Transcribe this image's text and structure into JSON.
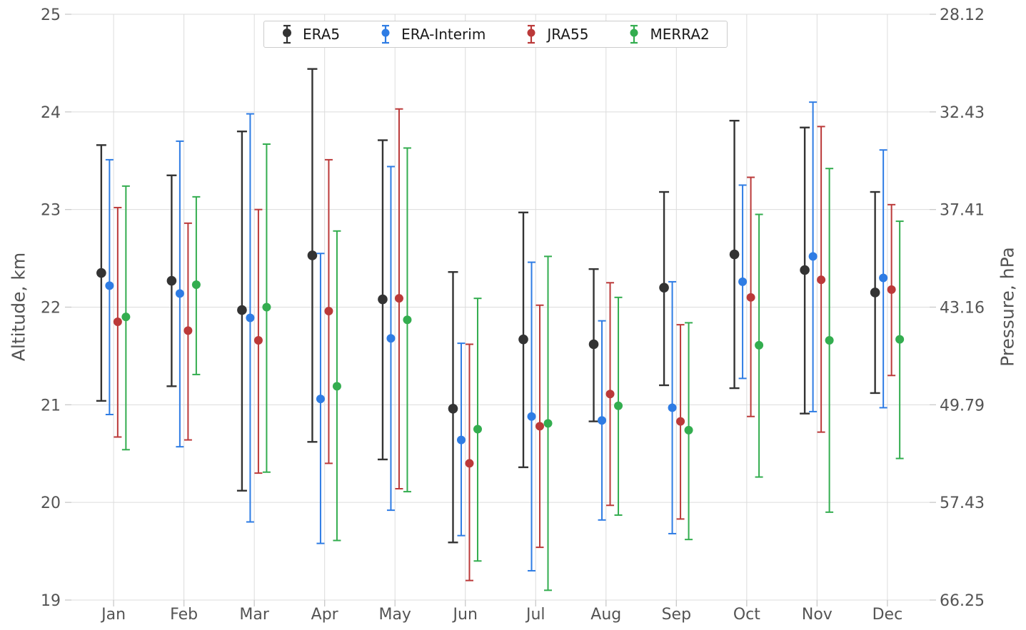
{
  "accent_colors": {
    "grid": "#dcdcdc",
    "tick_mark": "#c9c9c9",
    "tick_text": "#545454",
    "legend_border": "#cccccc",
    "legend_text": "#1a1a1a"
  },
  "chart_data": {
    "type": "scatter",
    "subtype": "errorbar",
    "title": "",
    "categories": [
      "Jan",
      "Feb",
      "Mar",
      "Apr",
      "May",
      "Jun",
      "Jul",
      "Aug",
      "Sep",
      "Oct",
      "Nov",
      "Dec"
    ],
    "y_left": {
      "label": "Altitude, km",
      "ticks": [
        25,
        24,
        23,
        22,
        21,
        20,
        19
      ],
      "range": [
        19,
        25
      ]
    },
    "y_right": {
      "label": "Pressure, hPa",
      "tick_labels": [
        "28.12",
        "32.43",
        "37.41",
        "43.16",
        "49.79",
        "57.43",
        "66.25"
      ]
    },
    "grid": true,
    "legend_position": "top-center",
    "series": [
      {
        "name": "ERA5",
        "color": "#333333",
        "values": [
          22.35,
          22.27,
          21.97,
          22.53,
          22.08,
          20.96,
          21.67,
          21.62,
          22.2,
          22.54,
          22.38,
          22.15
        ],
        "lo": [
          21.04,
          21.19,
          20.12,
          20.62,
          20.44,
          19.59,
          20.36,
          20.83,
          21.2,
          21.17,
          20.91,
          21.12
        ],
        "hi": [
          23.66,
          23.35,
          23.8,
          24.44,
          23.71,
          22.36,
          22.97,
          22.39,
          23.18,
          23.91,
          23.84,
          23.18
        ]
      },
      {
        "name": "ERA-Interim",
        "color": "#2e7ce4",
        "values": [
          22.22,
          22.14,
          21.89,
          21.06,
          21.68,
          20.64,
          20.88,
          20.84,
          20.97,
          22.26,
          22.52,
          22.3
        ],
        "lo": [
          20.9,
          20.57,
          19.8,
          19.58,
          19.92,
          19.66,
          19.3,
          19.82,
          19.68,
          21.27,
          20.93,
          20.97
        ],
        "hi": [
          23.51,
          23.7,
          23.98,
          22.55,
          23.44,
          21.63,
          22.46,
          21.86,
          22.26,
          23.25,
          24.1,
          23.61
        ]
      },
      {
        "name": "JRA55",
        "color": "#bb3939",
        "values": [
          21.85,
          21.76,
          21.66,
          21.96,
          22.09,
          20.4,
          20.78,
          21.11,
          20.83,
          22.1,
          22.28,
          22.18
        ],
        "lo": [
          20.67,
          20.64,
          20.3,
          20.4,
          20.14,
          19.2,
          19.54,
          19.97,
          19.83,
          20.88,
          20.72,
          21.3
        ],
        "hi": [
          23.02,
          22.86,
          23.0,
          23.51,
          24.03,
          21.62,
          22.02,
          22.25,
          21.82,
          23.33,
          23.85,
          23.05
        ]
      },
      {
        "name": "MERRA2",
        "color": "#33ad4f",
        "values": [
          21.9,
          22.23,
          22.0,
          21.19,
          21.87,
          20.75,
          20.81,
          20.99,
          20.74,
          21.61,
          21.66,
          21.67
        ],
        "lo": [
          20.54,
          21.31,
          20.31,
          19.61,
          20.11,
          19.4,
          19.1,
          19.87,
          19.62,
          20.26,
          19.9,
          20.45
        ],
        "hi": [
          23.24,
          23.13,
          23.67,
          22.78,
          23.63,
          22.09,
          22.52,
          22.1,
          21.84,
          22.95,
          23.42,
          22.88
        ]
      }
    ]
  }
}
